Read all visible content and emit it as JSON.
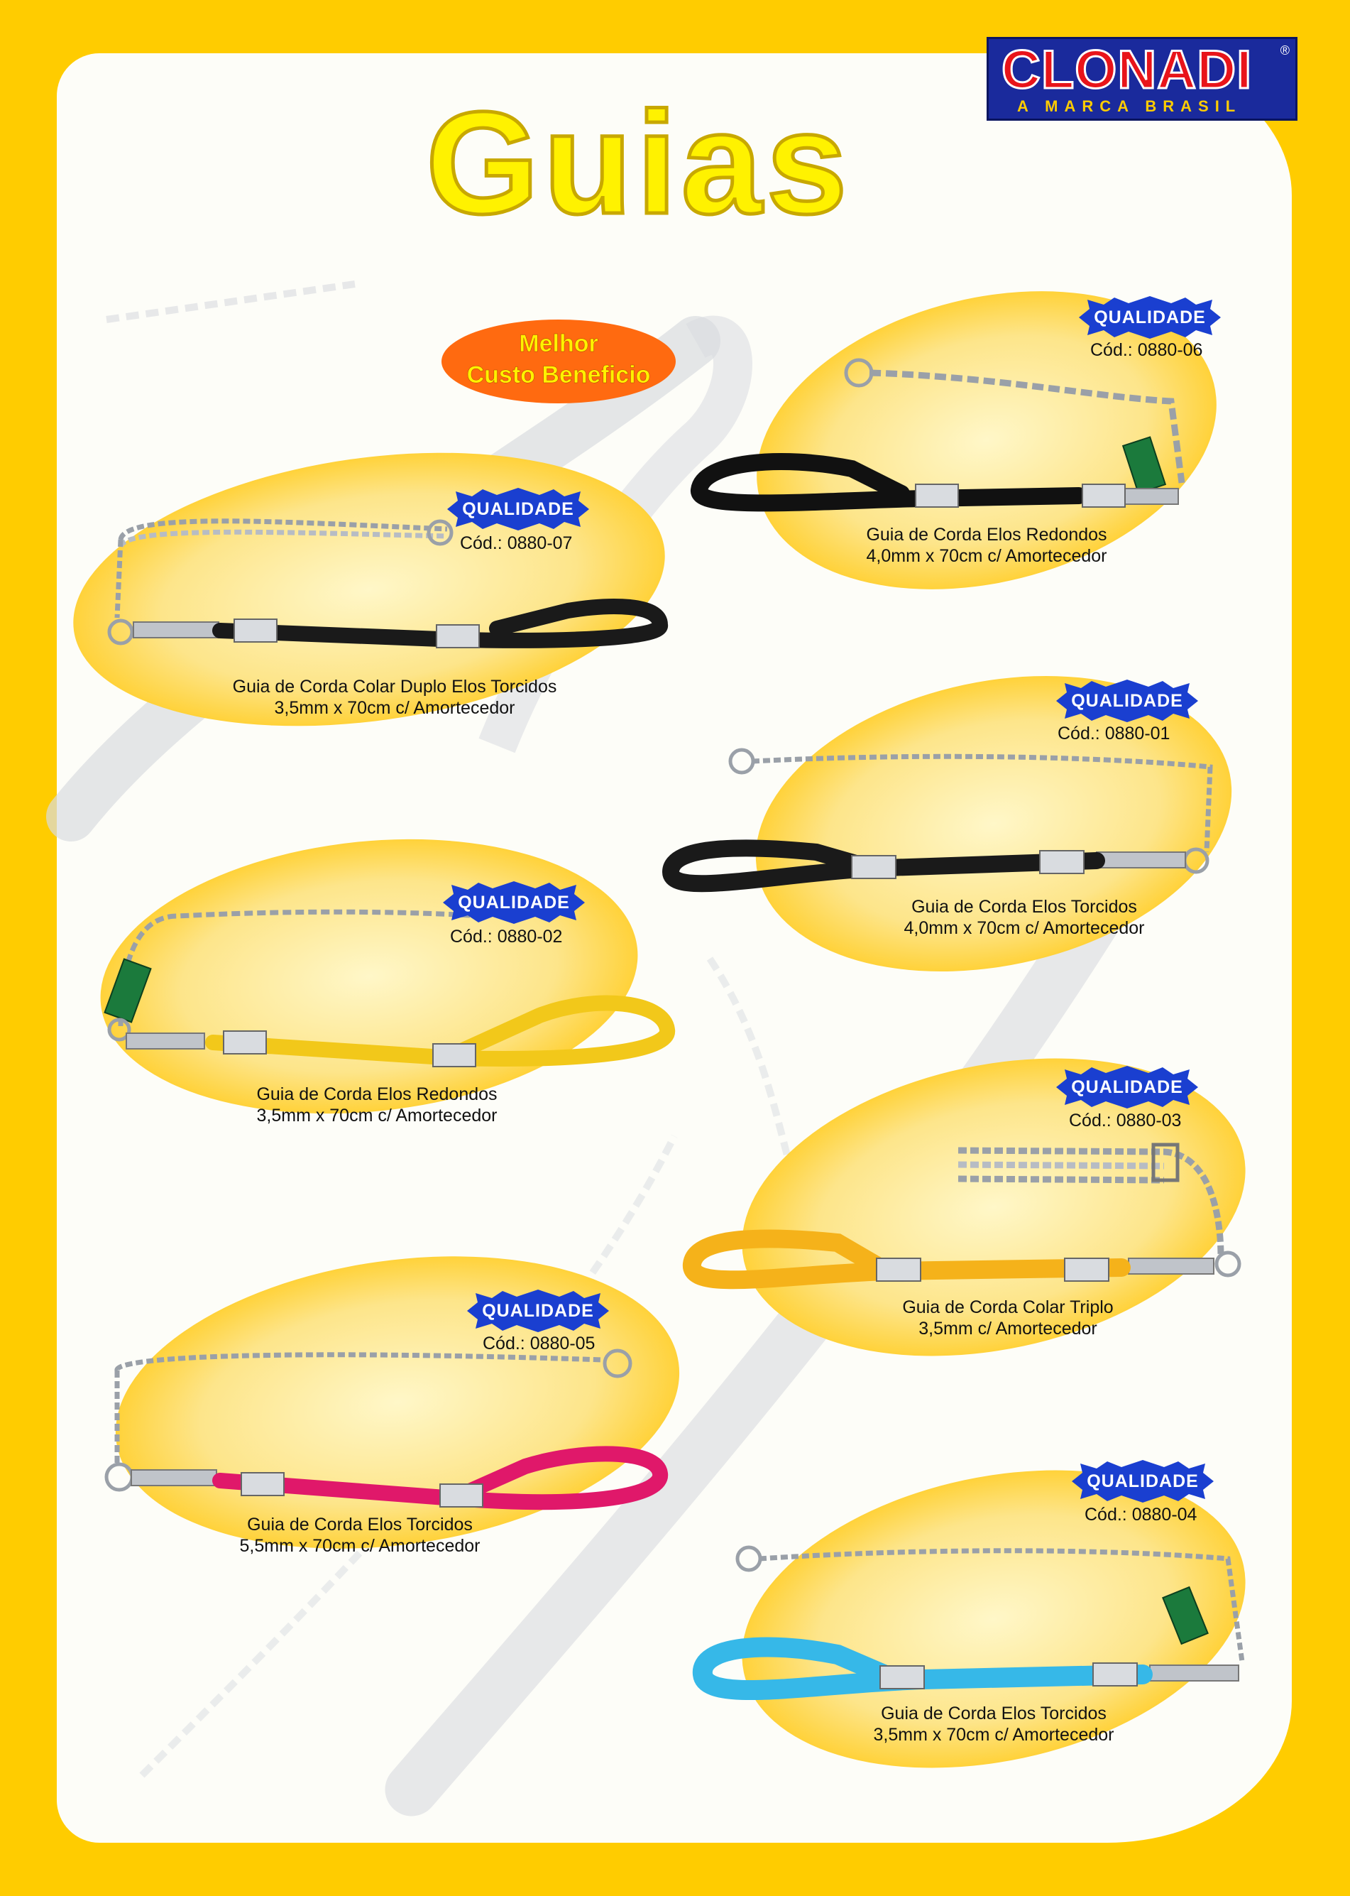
{
  "brand": {
    "name": "CLONADI",
    "registered": "®",
    "tagline": "A MARCA BRASIL"
  },
  "title": "Guias",
  "promo": {
    "line1": "Melhor",
    "line2": "Custo Beneficio"
  },
  "colors": {
    "background": "#ffcc00",
    "title": "#fff200",
    "badge": "#1a3fd0",
    "promo": "#ff6a10",
    "logo_bg": "#1a2a9c",
    "logo_word": "#e8141a"
  },
  "products": [
    {
      "badge": "QUALIDADE",
      "code": "Cód.: 0880-07",
      "name": "Guia de Corda Colar Duplo Elos Torcidos",
      "spec": "3,5mm x 70cm c/ Amortecedor",
      "rope_color": "#1a1a1a"
    },
    {
      "badge": "QUALIDADE",
      "code": "Cód.: 0880-06",
      "name": "Guia de Corda Elos Redondos",
      "spec": "4,0mm x 70cm c/ Amortecedor",
      "rope_color": "#111111"
    },
    {
      "badge": "QUALIDADE",
      "code": "Cód.: 0880-01",
      "name": "Guia de Corda Elos Torcidos",
      "spec": "4,0mm x 70cm c/ Amortecedor",
      "rope_color": "#1a1a1a"
    },
    {
      "badge": "QUALIDADE",
      "code": "Cód.: 0880-02",
      "name": "Guia de Corda Elos Redondos",
      "spec": "3,5mm x 70cm c/ Amortecedor",
      "rope_color": "#f2c81a"
    },
    {
      "badge": "QUALIDADE",
      "code": "Cód.: 0880-03",
      "name": "Guia de Corda Colar Triplo",
      "spec": "3,5mm c/ Amortecedor",
      "rope_color": "#f5b21a"
    },
    {
      "badge": "QUALIDADE",
      "code": "Cód.: 0880-05",
      "name": "Guia de Corda Elos Torcidos",
      "spec": "5,5mm x 70cm c/ Amortecedor",
      "rope_color": "#e0186a"
    },
    {
      "badge": "QUALIDADE",
      "code": "Cód.: 0880-04",
      "name": "Guia de Corda Elos Torcidos",
      "spec": "3,5mm x 70cm c/ Amortecedor",
      "rope_color": "#36b8e8"
    }
  ]
}
